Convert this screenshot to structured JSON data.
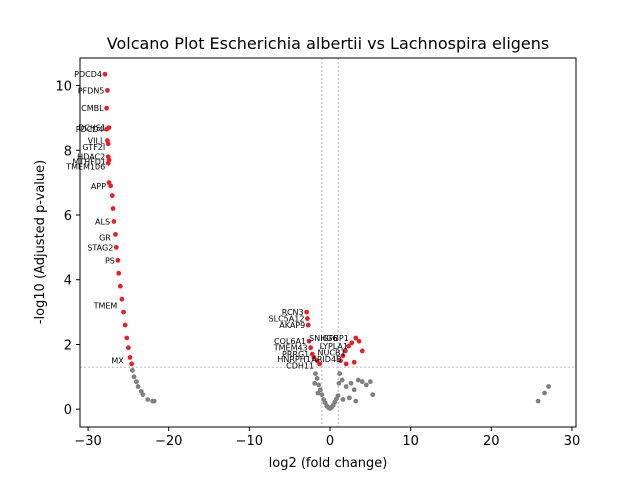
{
  "chart_data": {
    "type": "scatter",
    "title": "Volcano Plot Escherichia albertii vs Lachnospira eligens",
    "xlabel": "log2 (fold change)",
    "ylabel": "-log10 (Adjusted p-value)",
    "xlim": [
      -31,
      30.5
    ],
    "ylim": [
      -0.55,
      10.85
    ],
    "x_ticks": [
      -30,
      -20,
      -10,
      0,
      10,
      20,
      30
    ],
    "y_ticks": [
      0,
      2,
      4,
      6,
      8,
      10
    ],
    "thresholds": {
      "y": 1.3,
      "x": [
        -1,
        1
      ]
    },
    "colors": {
      "significant": "#e8202a",
      "not_significant": "#808080",
      "threshold_line": "#808080"
    },
    "grid": false,
    "legend": "none",
    "series": [
      {
        "role": "significant",
        "points": [
          [
            -27.9,
            10.35
          ],
          [
            -27.6,
            9.85
          ],
          [
            -27.7,
            9.3
          ],
          [
            -27.4,
            8.7
          ],
          [
            -27.7,
            8.65
          ],
          [
            -27.6,
            8.3
          ],
          [
            -27.5,
            8.2
          ],
          [
            -27.5,
            7.8
          ],
          [
            -27.4,
            7.7
          ],
          [
            -27.5,
            7.6
          ],
          [
            -27.4,
            7.0
          ],
          [
            -27.2,
            6.9
          ],
          [
            -27.0,
            6.6
          ],
          [
            -26.9,
            6.2
          ],
          [
            -26.8,
            5.8
          ],
          [
            -26.6,
            5.4
          ],
          [
            -26.5,
            5.0
          ],
          [
            -26.3,
            4.6
          ],
          [
            -26.2,
            4.2
          ],
          [
            -26.0,
            3.8
          ],
          [
            -25.8,
            3.4
          ],
          [
            -25.6,
            3.0
          ],
          [
            -25.4,
            2.6
          ],
          [
            -25.2,
            2.2
          ],
          [
            -25.0,
            1.9
          ],
          [
            -24.8,
            1.6
          ],
          [
            -24.6,
            1.4
          ],
          [
            -2.9,
            3.0
          ],
          [
            -2.8,
            2.8
          ],
          [
            -2.7,
            2.6
          ],
          [
            -2.6,
            2.1
          ],
          [
            -2.4,
            1.9
          ],
          [
            -2.2,
            1.7
          ],
          [
            -2.0,
            1.6
          ],
          [
            -1.6,
            1.5
          ],
          [
            -1.3,
            1.4
          ],
          [
            1.3,
            1.5
          ],
          [
            1.6,
            1.65
          ],
          [
            1.9,
            1.8
          ],
          [
            2.3,
            1.95
          ],
          [
            2.7,
            2.05
          ],
          [
            3.2,
            2.2
          ],
          [
            3.6,
            2.1
          ],
          [
            4.0,
            1.8
          ],
          [
            2.0,
            1.4
          ],
          [
            3.0,
            1.45
          ]
        ]
      },
      {
        "role": "not_significant",
        "points": [
          [
            -24.5,
            1.2
          ],
          [
            -24.3,
            1.0
          ],
          [
            -24.0,
            0.85
          ],
          [
            -23.8,
            0.7
          ],
          [
            -23.4,
            0.55
          ],
          [
            -23.2,
            0.45
          ],
          [
            -22.6,
            0.3
          ],
          [
            -22.0,
            0.25
          ],
          [
            -21.8,
            0.25
          ],
          [
            -1.8,
            1.1
          ],
          [
            -1.6,
            0.95
          ],
          [
            -1.4,
            0.75
          ],
          [
            -1.2,
            0.6
          ],
          [
            -1.0,
            0.45
          ],
          [
            -0.8,
            0.3
          ],
          [
            -0.6,
            0.2
          ],
          [
            -0.4,
            0.1
          ],
          [
            -0.2,
            0.05
          ],
          [
            0.0,
            0.02
          ],
          [
            0.2,
            0.06
          ],
          [
            0.4,
            0.12
          ],
          [
            0.6,
            0.22
          ],
          [
            0.8,
            0.32
          ],
          [
            1.0,
            0.42
          ],
          [
            1.1,
            0.8
          ],
          [
            1.2,
            1.1
          ],
          [
            1.5,
            0.9
          ],
          [
            2.0,
            0.7
          ],
          [
            2.6,
            0.8
          ],
          [
            3.0,
            0.6
          ],
          [
            3.5,
            0.9
          ],
          [
            4.0,
            0.85
          ],
          [
            4.5,
            0.75
          ],
          [
            5.0,
            0.85
          ],
          [
            5.3,
            0.45
          ],
          [
            1.6,
            0.3
          ],
          [
            2.4,
            0.35
          ],
          [
            3.2,
            0.25
          ],
          [
            -1.5,
            0.5
          ],
          [
            -1.9,
            0.8
          ],
          [
            25.8,
            0.25
          ],
          [
            26.6,
            0.5
          ],
          [
            27.1,
            0.7
          ]
        ]
      }
    ],
    "annotations": [
      {
        "text": "PDCD4",
        "x": -27.9,
        "y": 10.35
      },
      {
        "text": "PFDN5",
        "x": -27.6,
        "y": 9.85
      },
      {
        "text": "CMBL",
        "x": -27.7,
        "y": 9.3
      },
      {
        "text": "DCHS1",
        "x": -27.4,
        "y": 8.7
      },
      {
        "text": "PDCD4",
        "x": -27.7,
        "y": 8.65
      },
      {
        "text": "VILL",
        "x": -27.6,
        "y": 8.3
      },
      {
        "text": "GTF2I",
        "x": -27.5,
        "y": 8.1
      },
      {
        "text": "HDAC2",
        "x": -27.5,
        "y": 7.8
      },
      {
        "text": "MTHFD1",
        "x": -27.4,
        "y": 7.65
      },
      {
        "text": "TMEM106",
        "x": -27.5,
        "y": 7.5
      },
      {
        "text": "APP",
        "x": -27.4,
        "y": 6.9
      },
      {
        "text": "ALS",
        "x": -26.9,
        "y": 5.8
      },
      {
        "text": "GR",
        "x": -26.8,
        "y": 5.3
      },
      {
        "text": "STAG2",
        "x": -26.5,
        "y": 5.0
      },
      {
        "text": "PS",
        "x": -26.3,
        "y": 4.6
      },
      {
        "text": "TMEM",
        "x": -26.0,
        "y": 3.2
      },
      {
        "text": "MX",
        "x": -25.2,
        "y": 1.5
      },
      {
        "text": "RCN3",
        "x": -2.9,
        "y": 3.0
      },
      {
        "text": "SLC5A12",
        "x": -2.8,
        "y": 2.8
      },
      {
        "text": "AKAP9",
        "x": -2.7,
        "y": 2.6
      },
      {
        "text": "COL6A1",
        "x": -2.6,
        "y": 2.1
      },
      {
        "text": "TMEM43",
        "x": -2.4,
        "y": 1.9
      },
      {
        "text": "PRRG1",
        "x": -2.2,
        "y": 1.7
      },
      {
        "text": "HNRPH1",
        "x": -2.0,
        "y": 1.55
      },
      {
        "text": "CDH11",
        "x": -1.6,
        "y": 1.35
      },
      {
        "text": "SNHG6",
        "x": 1.3,
        "y": 2.2
      },
      {
        "text": "IGFBP1",
        "x": 2.7,
        "y": 2.2
      },
      {
        "text": "LYPLA1",
        "x": 2.6,
        "y": 1.95
      },
      {
        "text": "NUCB1",
        "x": 2.3,
        "y": 1.75
      },
      {
        "text": "ARID4B",
        "x": 1.8,
        "y": 1.55
      }
    ]
  }
}
